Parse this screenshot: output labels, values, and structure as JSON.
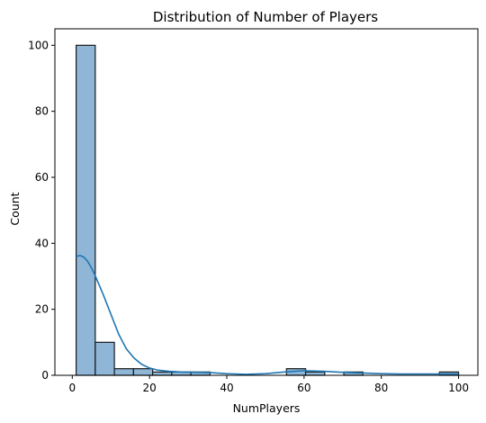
{
  "chart_data": {
    "type": "bar",
    "title": "Distribution of Number of Players",
    "xlabel": "NumPlayers",
    "ylabel": "Count",
    "xlim": [
      -4.5,
      105
    ],
    "ylim": [
      0,
      105
    ],
    "xticks": [
      0,
      20,
      40,
      60,
      80,
      100
    ],
    "yticks": [
      0,
      20,
      40,
      60,
      80,
      100
    ],
    "grid": false,
    "bar_color": "#8fb6d6",
    "kde_color": "#1f77b4",
    "bins": [
      {
        "x0": 1.0,
        "x1": 5.95,
        "count": 100
      },
      {
        "x0": 5.95,
        "x1": 10.9,
        "count": 10
      },
      {
        "x0": 10.9,
        "x1": 15.85,
        "count": 2
      },
      {
        "x0": 15.85,
        "x1": 20.8,
        "count": 2
      },
      {
        "x0": 20.8,
        "x1": 25.75,
        "count": 1
      },
      {
        "x0": 25.75,
        "x1": 30.7,
        "count": 1
      },
      {
        "x0": 30.7,
        "x1": 35.65,
        "count": 1
      },
      {
        "x0": 35.65,
        "x1": 40.6,
        "count": 0
      },
      {
        "x0": 40.6,
        "x1": 45.55,
        "count": 0
      },
      {
        "x0": 45.55,
        "x1": 50.5,
        "count": 0
      },
      {
        "x0": 50.5,
        "x1": 55.45,
        "count": 0
      },
      {
        "x0": 55.45,
        "x1": 60.4,
        "count": 2
      },
      {
        "x0": 60.4,
        "x1": 65.35,
        "count": 1
      },
      {
        "x0": 65.35,
        "x1": 70.3,
        "count": 0
      },
      {
        "x0": 70.3,
        "x1": 75.25,
        "count": 1
      },
      {
        "x0": 75.25,
        "x1": 80.2,
        "count": 0
      },
      {
        "x0": 80.2,
        "x1": 85.15,
        "count": 0
      },
      {
        "x0": 85.15,
        "x1": 90.1,
        "count": 0
      },
      {
        "x0": 90.1,
        "x1": 95.05,
        "count": 0
      },
      {
        "x0": 95.05,
        "x1": 100.0,
        "count": 1
      }
    ],
    "kde_points": [
      [
        1,
        36
      ],
      [
        2,
        36.3
      ],
      [
        3,
        35.8
      ],
      [
        4,
        34.5
      ],
      [
        5,
        32.5
      ],
      [
        6,
        30
      ],
      [
        8,
        24.5
      ],
      [
        10,
        18.5
      ],
      [
        12,
        12.5
      ],
      [
        14,
        8
      ],
      [
        16,
        5.2
      ],
      [
        18,
        3.3
      ],
      [
        20,
        2.2
      ],
      [
        22,
        1.6
      ],
      [
        25,
        1.2
      ],
      [
        28,
        1.0
      ],
      [
        32,
        0.9
      ],
      [
        36,
        0.8
      ],
      [
        40,
        0.5
      ],
      [
        45,
        0.3
      ],
      [
        50,
        0.5
      ],
      [
        55,
        1.0
      ],
      [
        60,
        1.4
      ],
      [
        65,
        1.2
      ],
      [
        70,
        0.9
      ],
      [
        75,
        0.7
      ],
      [
        80,
        0.5
      ],
      [
        85,
        0.4
      ],
      [
        90,
        0.4
      ],
      [
        95,
        0.4
      ],
      [
        100,
        0.4
      ]
    ]
  }
}
